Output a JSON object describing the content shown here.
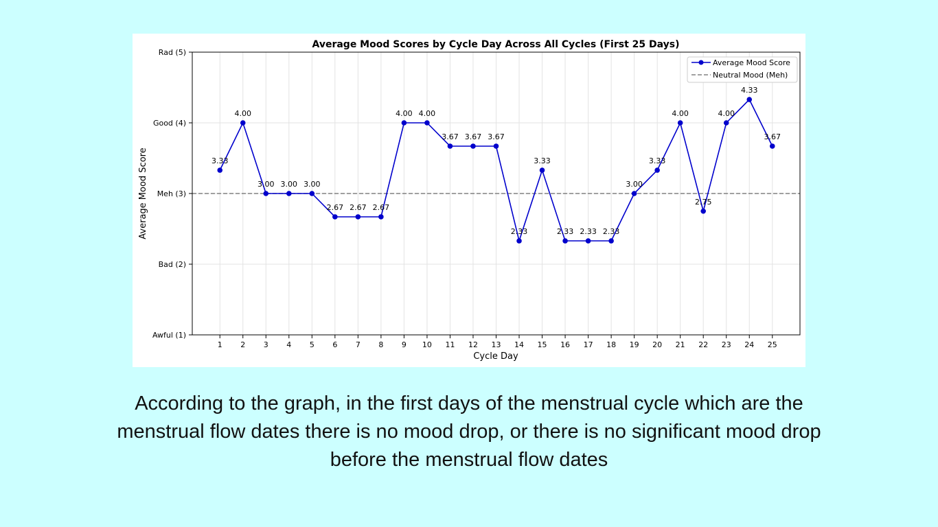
{
  "caption": "According to the graph, in the first days of the menstrual cycle which are the menstrual flow dates there is no mood drop, or there is no significant mood drop before the menstrual flow dates",
  "colors": {
    "page_background": "#ccffff",
    "series_line": "#0000cc",
    "reference_line": "#808080"
  },
  "chart_data": {
    "type": "line",
    "title": "Average Mood Scores by Cycle Day Across All Cycles (First 25 Days)",
    "xlabel": "Cycle Day",
    "ylabel": "Average Mood Score",
    "x": [
      1,
      2,
      3,
      4,
      5,
      6,
      7,
      8,
      9,
      10,
      11,
      12,
      13,
      14,
      15,
      16,
      17,
      18,
      19,
      20,
      21,
      22,
      23,
      24,
      25
    ],
    "series": [
      {
        "name": "Average Mood Score",
        "values": [
          3.33,
          4.0,
          3.0,
          3.0,
          3.0,
          2.67,
          2.67,
          2.67,
          4.0,
          4.0,
          3.67,
          3.67,
          3.67,
          2.33,
          3.33,
          2.33,
          2.33,
          2.33,
          3.0,
          3.33,
          4.0,
          2.75,
          4.0,
          4.33,
          3.67
        ],
        "labels": [
          "3.33",
          "4.00",
          "3.00",
          "3.00",
          "3.00",
          "2.67",
          "2.67",
          "2.67",
          "4.00",
          "4.00",
          "3.67",
          "3.67",
          "3.67",
          "2.33",
          "3.33",
          "2.33",
          "2.33",
          "2.33",
          "3.00",
          "3.33",
          "4.00",
          "2.75",
          "4.00",
          "4.33",
          "3.67"
        ]
      }
    ],
    "reference_line": {
      "name": "Neutral Mood (Meh)",
      "y": 3
    },
    "xlim": [
      -0.2,
      26.2
    ],
    "ylim": [
      1,
      5
    ],
    "yticks": [
      {
        "value": 1,
        "label": "Awful (1)"
      },
      {
        "value": 2,
        "label": "Bad (2)"
      },
      {
        "value": 3,
        "label": "Meh (3)"
      },
      {
        "value": 4,
        "label": "Good (4)"
      },
      {
        "value": 5,
        "label": "Rad (5)"
      }
    ],
    "grid": true,
    "legend": "top-right"
  }
}
